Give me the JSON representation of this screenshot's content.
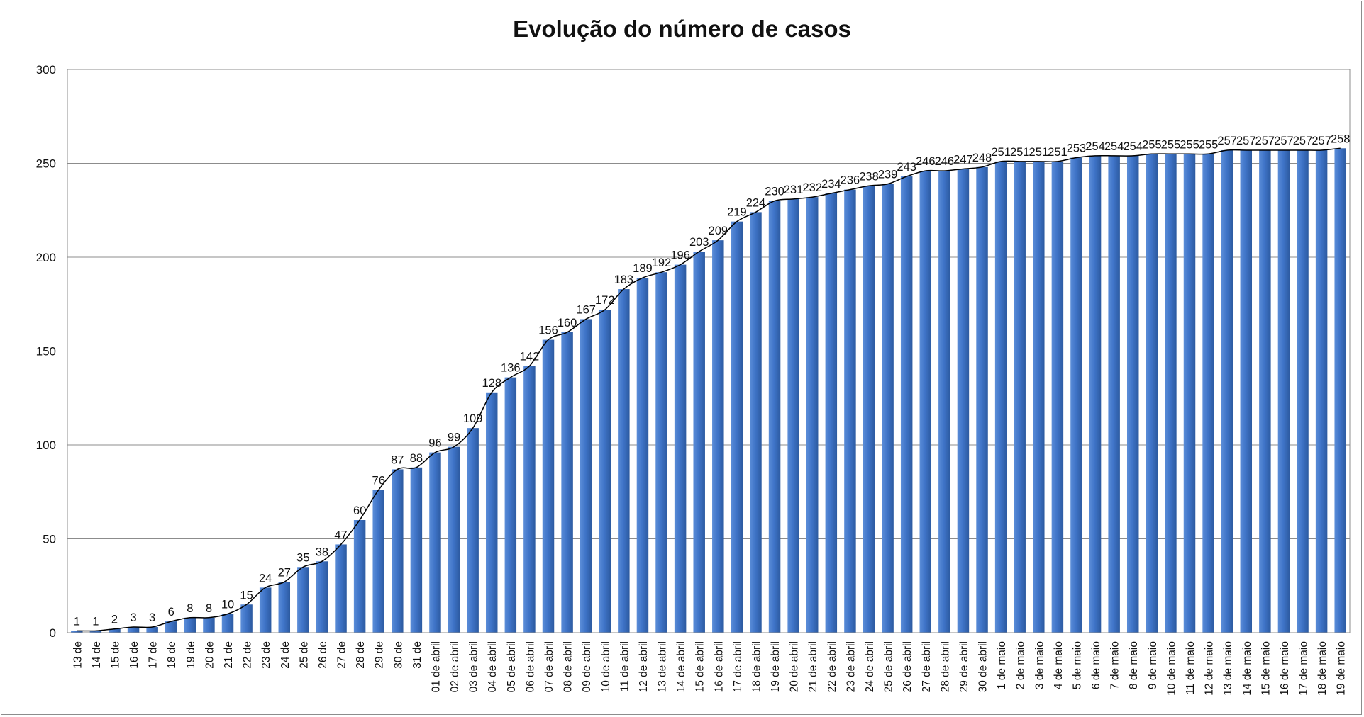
{
  "chart_data": {
    "type": "bar",
    "title": "Evolução do número de casos",
    "xlabel": "",
    "ylabel": "",
    "ylim": [
      0,
      300
    ],
    "yticks": [
      0,
      50,
      100,
      150,
      200,
      250,
      300
    ],
    "grid": true,
    "legend": "none",
    "colors": {
      "bar": "#3f72c4",
      "bar_light": "#6a9be0",
      "bar_dark": "#2a5596",
      "line": "#000000",
      "grid": "#8c8c8c"
    },
    "categories": [
      "13 de",
      "14 de",
      "15 de",
      "16 de",
      "17 de",
      "18 de",
      "19 de",
      "20 de",
      "21 de",
      "22 de",
      "23 de",
      "24 de",
      "25 de",
      "26 de",
      "27 de",
      "28 de",
      "29 de",
      "30 de",
      "31 de",
      "01 de abril",
      "02 de abril",
      "03 de abril",
      "04 de abril",
      "05 de abril",
      "06 de abril",
      "07 de abril",
      "08 de abril",
      "09 de abril",
      "10 de abril",
      "11 de abril",
      "12 de abril",
      "13 de abril",
      "14 de abril",
      "15 de abril",
      "16 de abril",
      "17 de abril",
      "18 de abril",
      "19 de abril",
      "20 de abril",
      "21 de abril",
      "22 de abril",
      "23 de abril",
      "24 de abril",
      "25 de abril",
      "26 de abril",
      "27 de abril",
      "28 de abril",
      "29 de abril",
      "30 de abril",
      "1 de maio",
      "2 de maio",
      "3 de maio",
      "4 de maio",
      "5 de maio",
      "6 de maio",
      "7 de maio",
      "8 de maio",
      "9 de maio",
      "10 de maio",
      "11 de maio",
      "12 de maio",
      "13 de maio",
      "14 de maio",
      "15 de maio",
      "16 de maio",
      "17 de maio",
      "18 de maio",
      "19 de maio"
    ],
    "values": [
      1,
      1,
      2,
      3,
      3,
      6,
      8,
      8,
      10,
      15,
      24,
      27,
      35,
      38,
      47,
      60,
      76,
      87,
      88,
      96,
      99,
      109,
      128,
      136,
      142,
      156,
      160,
      167,
      172,
      183,
      189,
      192,
      196,
      203,
      209,
      219,
      224,
      230,
      231,
      232,
      234,
      236,
      238,
      239,
      243,
      246,
      246,
      247,
      248,
      251,
      251,
      251,
      251,
      253,
      254,
      254,
      254,
      255,
      255,
      255,
      255,
      257,
      257,
      257,
      257,
      257,
      257,
      258
    ]
  }
}
